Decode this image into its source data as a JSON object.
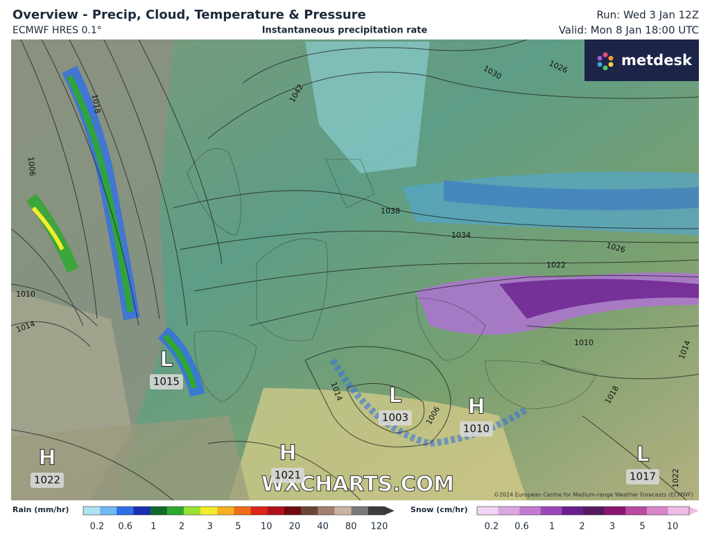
{
  "header": {
    "title": "Overview - Precip, Cloud, Temperature & Pressure",
    "model": "ECMWF HRES 0.1°",
    "product": "Instantaneous precipitation rate",
    "run": "Run: Wed 3 Jan 12Z",
    "valid": "Valid: Mon 8 Jan 18:00 UTC"
  },
  "logo": "metdesk",
  "map": {
    "pressure_centers": [
      {
        "type": "L",
        "value": 1015
      },
      {
        "type": "H",
        "value": 1022
      },
      {
        "type": "H",
        "value": 1021
      },
      {
        "type": "L",
        "value": 1003
      },
      {
        "type": "H",
        "value": 1010
      },
      {
        "type": "L",
        "value": 1017
      }
    ],
    "isobar_labels": [
      1042,
      1030,
      1026,
      1018,
      1006,
      1038,
      1034,
      1026,
      1022,
      1010,
      1014,
      1010,
      1014,
      1018,
      1014,
      1006,
      1022
    ],
    "watermark": "WXCHARTS.COM",
    "copyright": "©2024 European Centre for Medium-range Weather Forecasts (ECMWF)"
  },
  "legend": {
    "rain": {
      "label": "Rain (mm/hr)",
      "ticks": [
        0.2,
        0.6,
        1,
        2,
        3,
        5,
        10,
        20,
        40,
        80,
        120
      ],
      "colors": [
        "#aee3f0",
        "#6fb8f2",
        "#2f6fe6",
        "#1a2fb0",
        "#0c6b2a",
        "#2fa82f",
        "#9be234",
        "#f4ec2a",
        "#f5b21e",
        "#ee6d16",
        "#dc2418",
        "#b0101a",
        "#6e0a10",
        "#6a4434",
        "#a0806a",
        "#c9b5a5",
        "#7a7a7a",
        "#3c3c3c"
      ]
    },
    "snow": {
      "label": "Snow (cm/hr)",
      "ticks": [
        0.2,
        0.6,
        1,
        2,
        3,
        5,
        10
      ],
      "colors": [
        "#f0d6f2",
        "#dba7e2",
        "#c27bd2",
        "#9b47bb",
        "#6a1f8e",
        "#561a5e",
        "#8a1770",
        "#b84aa0",
        "#d886c8",
        "#eebce4"
      ]
    }
  }
}
